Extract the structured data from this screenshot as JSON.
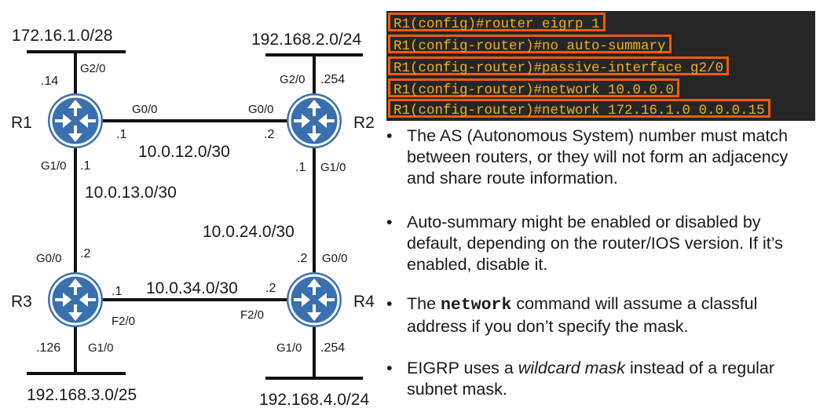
{
  "cli": {
    "lines": [
      "R1(config)#router eigrp 1",
      "R1(config-router)#no auto-summary",
      "R1(config-router)#passive-interface g2/0",
      "R1(config-router)#network 10.0.0.0",
      "R1(config-router)#network 172.16.1.0 0.0.0.15"
    ]
  },
  "bullets": {
    "b1": "The AS (Autonomous System) number must match between routers, or they will not form an adjacency and share route information.",
    "b2": "Auto-summary might be enabled or disabled by default, depending on the router/IOS version.  If it’s enabled, disable it.",
    "b3_pre": "The ",
    "b3_kw": "network",
    "b3_post": " command will assume a classful address if you don’t specify the mask.",
    "b4_pre": "EIGRP uses a ",
    "b4_em": "wildcard mask",
    "b4_post": " instead of a regular subnet mask."
  },
  "colors": {
    "router_fill": "#3a6fb0",
    "cli_bg": "#262626",
    "cli_text": "#f0b21c",
    "cli_border": "#f25a0e"
  },
  "topology": {
    "routers": {
      "r1": "R1",
      "r2": "R2",
      "r3": "R3",
      "r4": "R4"
    },
    "networks": {
      "lan_r1": "172.16.1.0/28",
      "lan_r2": "192.168.2.0/24",
      "lan_r3": "192.168.3.0/25",
      "lan_r4": "192.168.4.0/24",
      "r1_r2": "10.0.12.0/30",
      "r1_r3": "10.0.13.0/30",
      "r2_r4": "10.0.24.0/30",
      "r3_r4": "10.0.34.0/30"
    },
    "hosts": {
      "r1_lan": ".14",
      "r1_to_r2": ".1",
      "r1_to_r3": ".1",
      "r2_lan": ".254",
      "r2_to_r1": ".2",
      "r2_to_r4": ".1",
      "r3_to_r1": ".2",
      "r3_to_r4": ".1",
      "r3_lan": ".126",
      "r4_to_r2": ".2",
      "r4_to_r3": ".2",
      "r4_lan": ".254"
    },
    "interfaces": {
      "r1_lan": "G2/0",
      "r1_to_r2": "G0/0",
      "r1_to_r3": "G1/0",
      "r2_lan": "G2/0",
      "r2_to_r1": "G0/0",
      "r2_to_r4": "G1/0",
      "r3_to_r1": "G0/0",
      "r3_to_r4": "F2/0",
      "r3_lan": "G1/0",
      "r4_to_r2": "G0/0",
      "r4_to_r3": "F2/0",
      "r4_lan": "G1/0"
    }
  }
}
